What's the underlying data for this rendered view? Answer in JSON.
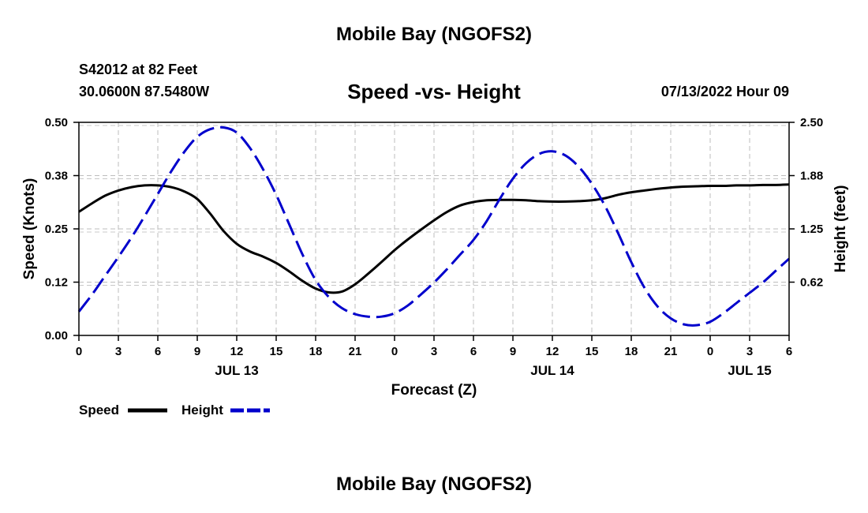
{
  "header": {
    "title": "Mobile Bay (NGOFS2)",
    "station": "S42012 at 82 Feet",
    "coords": "30.0600N  87.5480W",
    "chart_title": "Speed -vs- Height",
    "timestamp": "07/13/2022 Hour 09"
  },
  "footer": {
    "title": "Mobile Bay (NGOFS2)"
  },
  "chart_data": {
    "type": "line",
    "xlabel": "Forecast (Z)",
    "ylabel_left": "Speed (Knots)",
    "ylabel_right": "Height (feet)",
    "x_range": [
      0,
      54
    ],
    "x_ticks": [
      0,
      3,
      6,
      9,
      12,
      15,
      18,
      21,
      24,
      27,
      30,
      33,
      36,
      39,
      42,
      45,
      48,
      51,
      54
    ],
    "x_tick_labels": [
      "0",
      "3",
      "6",
      "9",
      "12",
      "15",
      "18",
      "21",
      "0",
      "3",
      "6",
      "9",
      "12",
      "15",
      "18",
      "21",
      "0",
      "3",
      "6"
    ],
    "day_labels": [
      {
        "x": 12,
        "label": "JUL 13"
      },
      {
        "x": 36,
        "label": "JUL 14"
      },
      {
        "x": 51,
        "label": "JUL 15"
      }
    ],
    "y_left_range": [
      0,
      0.5
    ],
    "y_left_ticks": [
      0,
      0.125,
      0.25,
      0.375,
      0.5
    ],
    "y_left_tick_labels": [
      "0.00",
      "0.12",
      "0.25",
      "0.38",
      "0.50"
    ],
    "y_right_range": [
      0,
      2.5
    ],
    "y_right_ticks": [
      0.625,
      1.25,
      1.875,
      2.5
    ],
    "y_right_tick_labels": [
      "0.62",
      "1.25",
      "1.88",
      "2.50"
    ],
    "grid": true,
    "legend_position": "bottom-left",
    "series": [
      {
        "name": "Speed",
        "axis": "left",
        "color": "#000000",
        "style": "solid",
        "x": [
          0,
          1,
          2,
          3,
          4,
          5,
          6,
          7,
          8,
          9,
          10,
          11,
          12,
          13,
          14,
          15,
          16,
          17,
          18,
          19,
          20,
          21,
          22,
          23,
          24,
          25,
          26,
          27,
          28,
          29,
          30,
          31,
          32,
          33,
          34,
          35,
          36,
          37,
          38,
          39,
          40,
          41,
          42,
          43,
          44,
          45,
          46,
          47,
          48,
          49,
          50,
          51,
          52,
          53,
          54
        ],
        "values": [
          0.29,
          0.31,
          0.328,
          0.34,
          0.348,
          0.352,
          0.352,
          0.348,
          0.338,
          0.32,
          0.285,
          0.245,
          0.215,
          0.197,
          0.185,
          0.17,
          0.15,
          0.128,
          0.11,
          0.101,
          0.103,
          0.12,
          0.145,
          0.172,
          0.2,
          0.225,
          0.248,
          0.27,
          0.29,
          0.305,
          0.313,
          0.317,
          0.318,
          0.318,
          0.317,
          0.315,
          0.314,
          0.314,
          0.315,
          0.317,
          0.322,
          0.33,
          0.336,
          0.34,
          0.344,
          0.347,
          0.349,
          0.35,
          0.351,
          0.351,
          0.352,
          0.352,
          0.353,
          0.353,
          0.354
        ]
      },
      {
        "name": "Height",
        "axis": "right",
        "color": "#0000cc",
        "style": "dashed",
        "x": [
          0,
          1,
          2,
          3,
          4,
          5,
          6,
          7,
          8,
          9,
          10,
          11,
          12,
          13,
          14,
          15,
          16,
          17,
          18,
          19,
          20,
          21,
          22,
          23,
          24,
          25,
          26,
          27,
          28,
          29,
          30,
          31,
          32,
          33,
          34,
          35,
          36,
          37,
          38,
          39,
          40,
          41,
          42,
          43,
          44,
          45,
          46,
          47,
          48,
          49,
          50,
          51,
          52,
          53,
          54
        ],
        "values": [
          0.28,
          0.48,
          0.7,
          0.92,
          1.15,
          1.4,
          1.66,
          1.92,
          2.15,
          2.33,
          2.42,
          2.44,
          2.38,
          2.2,
          1.95,
          1.65,
          1.3,
          0.95,
          0.65,
          0.45,
          0.32,
          0.25,
          0.22,
          0.22,
          0.26,
          0.35,
          0.48,
          0.62,
          0.78,
          0.95,
          1.12,
          1.34,
          1.6,
          1.84,
          2.02,
          2.13,
          2.16,
          2.11,
          1.98,
          1.78,
          1.52,
          1.2,
          0.86,
          0.56,
          0.34,
          0.2,
          0.13,
          0.12,
          0.16,
          0.26,
          0.38,
          0.5,
          0.62,
          0.76,
          0.9
        ]
      }
    ]
  }
}
